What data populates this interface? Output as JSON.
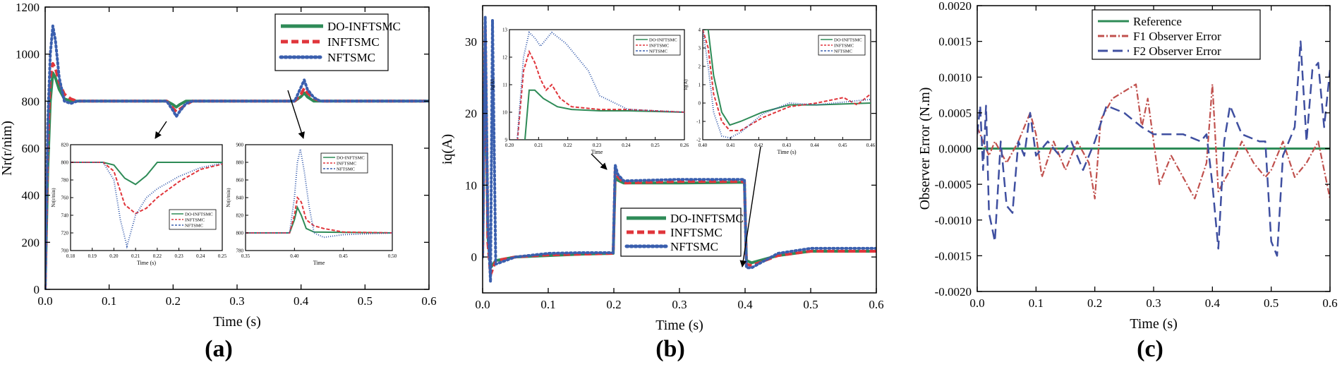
{
  "colors": {
    "do_infntsmc": "#2e8b57",
    "infntsmc": "#e0353b",
    "nftsmc": "#3a5fae",
    "reference": "#2e8b57",
    "f1": "#c0504d",
    "f2": "#3f4fa0"
  },
  "chart_data": [
    {
      "id": "a",
      "type": "line",
      "panel_label": "(a)",
      "xlabel": "Time (s)",
      "ylabel": "Nr(r/nim)",
      "xlim": [
        0.0,
        0.6
      ],
      "ylim": [
        0,
        1200
      ],
      "xticks": [
        0.0,
        0.1,
        0.2,
        0.3,
        0.4,
        0.5,
        0.6
      ],
      "xtick_labels": [
        "0.0",
        "0.1",
        "0.2",
        "0.3",
        "0.4",
        "0.5",
        "0.6"
      ],
      "yticks": [
        0,
        200,
        400,
        600,
        800,
        1000,
        1200
      ],
      "ytick_labels": [
        "0",
        "200",
        "400",
        "600",
        "800",
        "1000",
        "1200"
      ],
      "legend": [
        "DO-INFTSMC",
        "INFTSMC",
        "NFTSMC"
      ],
      "legend_position": "top-right",
      "series": [
        {
          "name": "DO-INFTSMC",
          "x": [
            0,
            0.004,
            0.008,
            0.012,
            0.016,
            0.022,
            0.03,
            0.04,
            0.05,
            0.1,
            0.19,
            0.2,
            0.205,
            0.21,
            0.22,
            0.3,
            0.39,
            0.4,
            0.405,
            0.41,
            0.42,
            0.5,
            0.6
          ],
          "y": [
            0,
            500,
            800,
            920,
            900,
            850,
            810,
            800,
            800,
            800,
            800,
            785,
            775,
            785,
            800,
            800,
            800,
            820,
            835,
            818,
            800,
            800,
            800
          ]
        },
        {
          "name": "INFTSMC",
          "x": [
            0,
            0.004,
            0.008,
            0.012,
            0.016,
            0.022,
            0.03,
            0.04,
            0.05,
            0.1,
            0.19,
            0.2,
            0.205,
            0.21,
            0.22,
            0.23,
            0.3,
            0.39,
            0.4,
            0.405,
            0.41,
            0.42,
            0.43,
            0.5,
            0.6
          ],
          "y": [
            0,
            600,
            900,
            960,
            940,
            880,
            830,
            810,
            800,
            800,
            800,
            770,
            755,
            765,
            785,
            800,
            800,
            800,
            830,
            855,
            835,
            812,
            800,
            800,
            800
          ]
        },
        {
          "name": "NFTSMC",
          "x": [
            0,
            0.004,
            0.008,
            0.012,
            0.016,
            0.022,
            0.03,
            0.04,
            0.05,
            0.1,
            0.19,
            0.2,
            0.205,
            0.21,
            0.22,
            0.23,
            0.3,
            0.39,
            0.4,
            0.405,
            0.41,
            0.42,
            0.43,
            0.5,
            0.6
          ],
          "y": [
            0,
            700,
            1000,
            1120,
            1060,
            900,
            800,
            790,
            800,
            800,
            800,
            760,
            735,
            755,
            790,
            800,
            800,
            800,
            860,
            890,
            850,
            815,
            800,
            800,
            800
          ]
        }
      ],
      "insets": [
        {
          "xlabel": "Time (s)",
          "ylabel": "Nr(r/min)",
          "xlim": [
            0.18,
            0.25
          ],
          "ylim": [
            700,
            820
          ],
          "xtick_labels": [
            "0.18",
            "0.19",
            "0.20",
            "0.21",
            "0.22",
            "0.23",
            "0.24",
            "0.25"
          ],
          "ytick_labels": [
            "700",
            "720",
            "740",
            "760",
            "780",
            "800",
            "820"
          ],
          "legend": [
            "DO-INFTSMC",
            "INFTSMC",
            "NFTSMC"
          ]
        },
        {
          "xlabel": "Time",
          "ylabel": "Nr(r/min)",
          "xlim": [
            0.35,
            0.5
          ],
          "ylim": [
            780,
            900
          ],
          "xtick_labels": [
            "0.35",
            "0.40",
            "0.45",
            "0.50"
          ],
          "ytick_labels": [
            "780",
            "800",
            "820",
            "840",
            "860",
            "880",
            "900"
          ],
          "legend": [
            "DO-INFTSMC",
            "INFTSMC",
            "NFTSMC"
          ]
        }
      ]
    },
    {
      "id": "b",
      "type": "line",
      "panel_label": "(b)",
      "xlabel": "Time (s)",
      "ylabel": "iq(A)",
      "xlim": [
        0.0,
        0.6
      ],
      "ylim": [
        -5,
        35
      ],
      "xticks": [
        0.0,
        0.1,
        0.2,
        0.3,
        0.4,
        0.5,
        0.6
      ],
      "xtick_labels": [
        "0.0",
        "0.1",
        "0.2",
        "0.3",
        "0.4",
        "0.5",
        "0.6"
      ],
      "yticks": [
        0,
        10,
        20,
        30
      ],
      "ytick_labels": [
        "0",
        "10",
        "20",
        "30"
      ],
      "legend": [
        "DO-INFTSMC",
        "INFTSMC",
        "NFTSMC"
      ],
      "legend_position": "bottom-center",
      "series": [
        {
          "name": "DO-INFTSMC",
          "x": [
            0,
            0.004,
            0.008,
            0.012,
            0.02,
            0.05,
            0.1,
            0.15,
            0.199,
            0.202,
            0.206,
            0.215,
            0.3,
            0.399,
            0.402,
            0.41,
            0.45,
            0.5,
            0.6
          ],
          "y": [
            0,
            31,
            3,
            -1.5,
            -0.5,
            0,
            0.2,
            0.4,
            0.5,
            11,
            10.7,
            10.3,
            10.3,
            10.4,
            -0.5,
            -0.8,
            0.2,
            0.8,
            0.8
          ]
        },
        {
          "name": "INFTSMC",
          "x": [
            0,
            0.004,
            0.008,
            0.012,
            0.02,
            0.05,
            0.1,
            0.15,
            0.199,
            0.202,
            0.206,
            0.215,
            0.3,
            0.399,
            0.402,
            0.41,
            0.45,
            0.5,
            0.6
          ],
          "y": [
            0,
            32,
            2,
            -2.5,
            -0.5,
            0,
            0.3,
            0.4,
            0.5,
            12,
            11.2,
            10.3,
            10.5,
            10.5,
            -1,
            -1.2,
            0.2,
            0.8,
            0.8
          ]
        },
        {
          "name": "NFTSMC",
          "x": [
            0,
            0.004,
            0.008,
            0.012,
            0.015,
            0.02,
            0.05,
            0.1,
            0.15,
            0.199,
            0.202,
            0.206,
            0.215,
            0.3,
            0.399,
            0.402,
            0.41,
            0.45,
            0.5,
            0.6
          ],
          "y": [
            0,
            33.5,
            5,
            -3.5,
            33,
            -1,
            0,
            0.5,
            0.6,
            0.6,
            12.8,
            11.5,
            10.6,
            10.8,
            10.8,
            -1.5,
            -1.5,
            0.5,
            1.2,
            1.2
          ]
        }
      ],
      "insets": [
        {
          "xlabel": "Time",
          "ylabel": "iq(A)",
          "xlim": [
            0.198,
            0.26
          ],
          "ylim": [
            9,
            13
          ],
          "xtick_labels": [
            "0.20",
            "0.21",
            "0.22",
            "0.23",
            "0.24",
            "0.25",
            "0.26"
          ],
          "ytick_labels": [
            "9",
            "10",
            "11",
            "12",
            "13"
          ],
          "legend": [
            "DO-INFTSMC",
            "INFTSMC",
            "NFTSMC"
          ]
        },
        {
          "xlabel": "Time (s)",
          "ylabel": "iq(A)",
          "xlim": [
            0.398,
            0.46
          ],
          "ylim": [
            -2,
            4
          ],
          "xtick_labels": [
            "0.40",
            "0.41",
            "0.42",
            "0.43",
            "0.44",
            "0.45",
            "0.46"
          ],
          "ytick_labels": [
            "-2",
            "-1",
            "0",
            "1",
            "2",
            "3",
            "4"
          ],
          "legend": [
            "DO-INFTSMC",
            "INFTSMC",
            "NFTSMC"
          ]
        }
      ]
    },
    {
      "id": "c",
      "type": "line",
      "panel_label": "(c)",
      "xlabel": "Time (s)",
      "ylabel": "Observer Error (N.m)",
      "xlim": [
        0.0,
        0.6
      ],
      "ylim": [
        -0.002,
        0.002
      ],
      "xticks": [
        0.0,
        0.1,
        0.2,
        0.3,
        0.4,
        0.5,
        0.6
      ],
      "xtick_labels": [
        "0.0",
        "0.1",
        "0.2",
        "0.3",
        "0.4",
        "0.5",
        "0.6"
      ],
      "yticks": [
        -0.002,
        -0.0015,
        -0.001,
        -0.0005,
        0,
        0.0005,
        0.001,
        0.0015,
        0.002
      ],
      "ytick_labels": [
        "-0.0020",
        "-0.0015",
        "-0.0010",
        "-0.0005",
        "0.0000",
        "0.0005",
        "0.0010",
        "0.0015",
        "0.0020"
      ],
      "legend": [
        "Reference",
        "F1  Observer Error",
        "F2  Observer Error"
      ],
      "legend_position": "top-center",
      "series": [
        {
          "name": "Reference",
          "x": [
            0,
            0.6
          ],
          "y": [
            0,
            0
          ]
        },
        {
          "name": "F1  Observer Error",
          "x": [
            0,
            0.01,
            0.02,
            0.03,
            0.05,
            0.07,
            0.09,
            0.1,
            0.11,
            0.13,
            0.15,
            0.17,
            0.19,
            0.2,
            0.21,
            0.23,
            0.25,
            0.27,
            0.28,
            0.29,
            0.3,
            0.31,
            0.33,
            0.35,
            0.37,
            0.39,
            0.4,
            0.41,
            0.43,
            0.45,
            0.47,
            0.49,
            0.5,
            0.52,
            0.54,
            0.56,
            0.58,
            0.6
          ],
          "y": [
            0.0003,
            0.0001,
            -0.0001,
            0.0001,
            -0.0002,
            0.0001,
            0.0005,
            0.0002,
            -0.0004,
            0.0001,
            -0.0003,
            0.0001,
            -0.0002,
            -0.0007,
            0.0004,
            0.0007,
            0.0008,
            0.0009,
            0.0003,
            0.0007,
            0.0001,
            -0.0005,
            -0.0001,
            -0.0004,
            -0.0007,
            -0.0002,
            0.0009,
            -0.0006,
            -0.0003,
            0.0001,
            -0.0002,
            -0.0004,
            -0.0003,
            0.0001,
            -0.0004,
            -0.0002,
            0.0001,
            -0.0007
          ]
        },
        {
          "name": "F2  Observer Error",
          "x": [
            0,
            0.005,
            0.01,
            0.015,
            0.02,
            0.03,
            0.04,
            0.05,
            0.06,
            0.07,
            0.08,
            0.09,
            0.1,
            0.12,
            0.14,
            0.16,
            0.18,
            0.2,
            0.22,
            0.25,
            0.28,
            0.3,
            0.35,
            0.38,
            0.39,
            0.4,
            0.41,
            0.42,
            0.43,
            0.45,
            0.48,
            0.49,
            0.5,
            0.51,
            0.52,
            0.53,
            0.54,
            0.55,
            0.56,
            0.57,
            0.58,
            0.59,
            0.6
          ],
          "y": [
            0.0002,
            0.0006,
            -0.0003,
            0.0006,
            -0.0009,
            -0.0013,
            0.0001,
            -0.0008,
            -0.0009,
            0.0001,
            -0.0001,
            0.0005,
            -0.0001,
            0.0001,
            -0.0001,
            0.0001,
            -0.0003,
            0.0001,
            0.0006,
            0.0005,
            0.0003,
            0.0002,
            0.0002,
            0.0001,
            0.0002,
            -0.0005,
            -0.0014,
            0.0001,
            0.0006,
            0.0002,
            0.0001,
            0.0001,
            -0.0013,
            -0.0015,
            -0.0001,
            0.0001,
            0.0003,
            0.0015,
            0.0001,
            0.0011,
            0.0012,
            0.0003,
            0.0011
          ]
        }
      ]
    }
  ]
}
